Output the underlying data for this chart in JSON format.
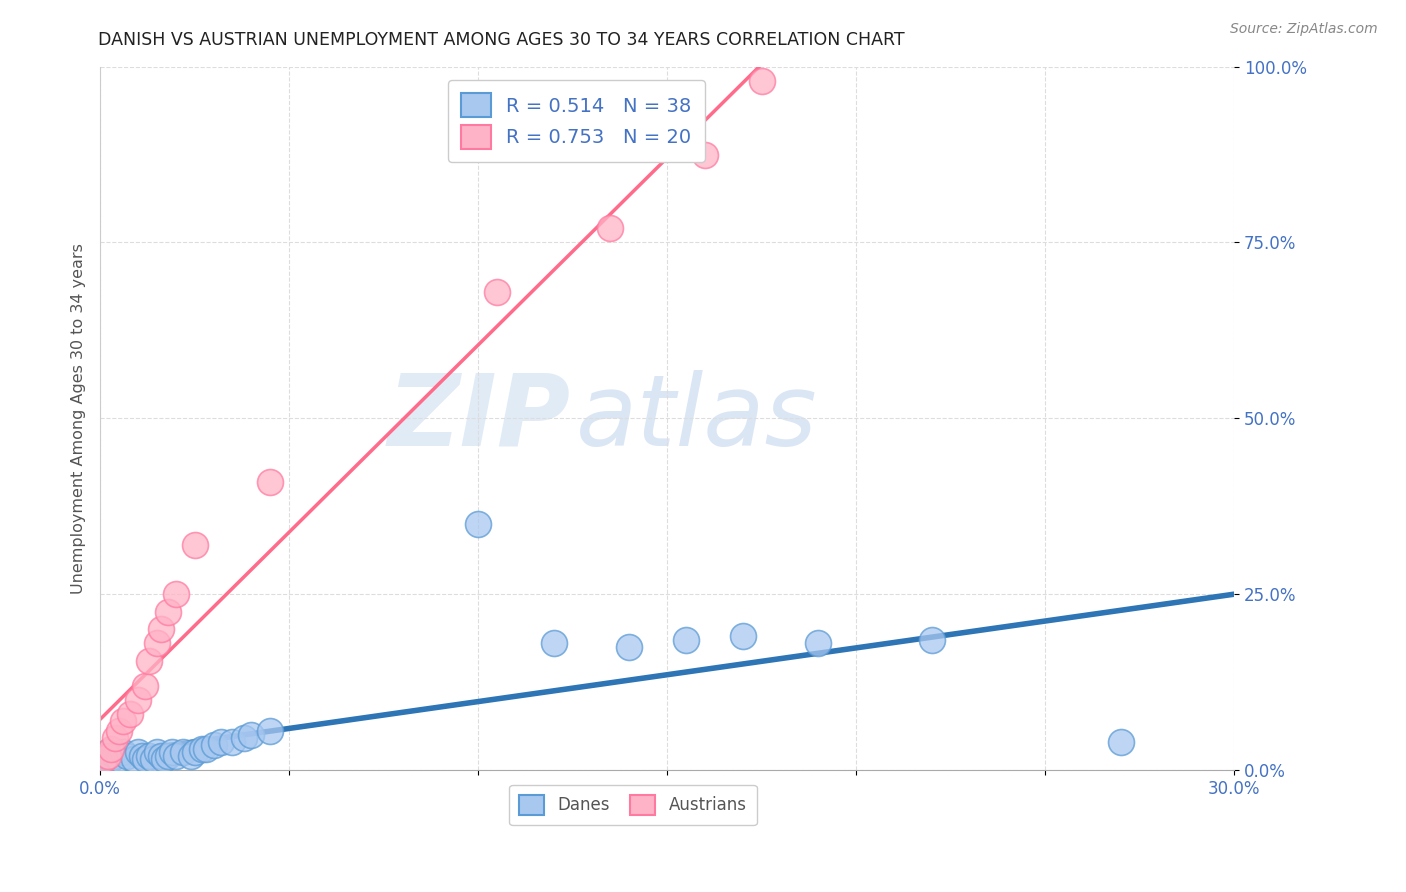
{
  "title": "DANISH VS AUSTRIAN UNEMPLOYMENT AMONG AGES 30 TO 34 YEARS CORRELATION CHART",
  "source": "Source: ZipAtlas.com",
  "ylabel": "Unemployment Among Ages 30 to 34 years",
  "xlim": [
    0.0,
    0.3
  ],
  "ylim": [
    0.0,
    1.0
  ],
  "xticks": [
    0.0,
    0.05,
    0.1,
    0.15,
    0.2,
    0.25,
    0.3
  ],
  "yticks": [
    0.0,
    0.25,
    0.5,
    0.75,
    1.0
  ],
  "xtick_labels": [
    "0.0%",
    "",
    "",
    "",
    "",
    "",
    "30.0%"
  ],
  "ytick_labels_right": [
    "0.0%",
    "25.0%",
    "50.0%",
    "75.0%",
    "100.0%"
  ],
  "danes_color": "#A8C8F0",
  "danes_edge_color": "#5B9BD5",
  "austrians_color": "#FFB3C6",
  "austrians_edge_color": "#FF7AA0",
  "danes_line_color": "#2E75B6",
  "austrians_line_color": "#FF6B8A",
  "legend_danes_label": "R = 0.514   N = 38",
  "legend_austrians_label": "R = 0.753   N = 20",
  "danes_x": [
    0.001,
    0.002,
    0.003,
    0.004,
    0.005,
    0.006,
    0.007,
    0.009,
    0.01,
    0.011,
    0.012,
    0.013,
    0.014,
    0.015,
    0.016,
    0.017,
    0.018,
    0.019,
    0.02,
    0.022,
    0.024,
    0.025,
    0.027,
    0.028,
    0.03,
    0.032,
    0.035,
    0.038,
    0.04,
    0.045,
    0.1,
    0.12,
    0.14,
    0.155,
    0.17,
    0.19,
    0.22,
    0.27
  ],
  "danes_y": [
    0.02,
    0.025,
    0.015,
    0.02,
    0.015,
    0.025,
    0.02,
    0.015,
    0.025,
    0.02,
    0.015,
    0.02,
    0.015,
    0.025,
    0.02,
    0.015,
    0.02,
    0.025,
    0.02,
    0.025,
    0.02,
    0.025,
    0.03,
    0.03,
    0.035,
    0.04,
    0.04,
    0.045,
    0.05,
    0.055,
    0.35,
    0.18,
    0.175,
    0.185,
    0.19,
    0.18,
    0.185,
    0.04
  ],
  "austrians_x": [
    0.001,
    0.002,
    0.003,
    0.004,
    0.005,
    0.006,
    0.008,
    0.01,
    0.012,
    0.013,
    0.015,
    0.016,
    0.018,
    0.02,
    0.025,
    0.045,
    0.105,
    0.135,
    0.16,
    0.175
  ],
  "austrians_y": [
    0.015,
    0.02,
    0.03,
    0.045,
    0.055,
    0.07,
    0.08,
    0.1,
    0.12,
    0.155,
    0.18,
    0.2,
    0.225,
    0.25,
    0.32,
    0.41,
    0.68,
    0.77,
    0.875,
    0.98
  ],
  "watermark_zip": "ZIP",
  "watermark_atlas": "atlas",
  "background_color": "#FFFFFF",
  "grid_color": "#DDDDDD"
}
